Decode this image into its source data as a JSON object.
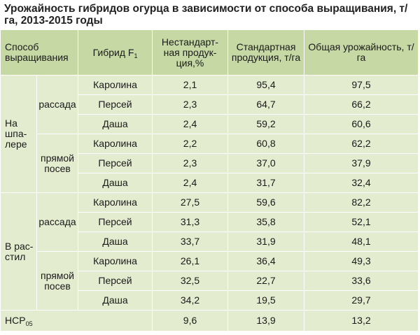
{
  "title": "Урожайность гибридов огурца в зависимости от способа выращивания, т/га, 2013-2015 годы",
  "headers": {
    "method": "Способ выращивания",
    "hybrid_main": "Гибрид F",
    "hybrid_sub": "1",
    "nonstandard": "Нестандарт-ная продук-ция,%",
    "standard": "Стандартная продукция, т/га",
    "total": "Общая урожайность, т/га"
  },
  "groups": [
    {
      "label": "На шпа-лере",
      "subgroups": [
        {
          "label": "рассада",
          "rows": [
            {
              "hybrid": "Каролина",
              "nonstandard": "2,1",
              "standard": "95,4",
              "total": "97,5"
            },
            {
              "hybrid": "Персей",
              "nonstandard": "2,3",
              "standard": "64,7",
              "total": "66,2"
            },
            {
              "hybrid": "Даша",
              "nonstandard": "2,4",
              "standard": "59,2",
              "total": "60,6"
            }
          ]
        },
        {
          "label": "прямой посев",
          "rows": [
            {
              "hybrid": "Каролина",
              "nonstandard": "2,2",
              "standard": "60,8",
              "total": "62,2"
            },
            {
              "hybrid": "Персей",
              "nonstandard": "2,3",
              "standard": "37,0",
              "total": "37,9"
            },
            {
              "hybrid": "Даша",
              "nonstandard": "2,4",
              "standard": "31,7",
              "total": "32,4"
            }
          ]
        }
      ]
    },
    {
      "label": "В рас-стил",
      "subgroups": [
        {
          "label": "рассада",
          "rows": [
            {
              "hybrid": "Каролина",
              "nonstandard": "27,5",
              "standard": "59,6",
              "total": "82,2"
            },
            {
              "hybrid": "Персей",
              "nonstandard": "31,3",
              "standard": "35,8",
              "total": "52,1"
            },
            {
              "hybrid": "Даша",
              "nonstandard": "33,7",
              "standard": "31,9",
              "total": "48,1"
            }
          ]
        },
        {
          "label": "прямой посев",
          "rows": [
            {
              "hybrid": "Каролина",
              "nonstandard": "26,1",
              "standard": "36,4",
              "total": "49,3"
            },
            {
              "hybrid": "Персей",
              "nonstandard": "32,5",
              "standard": "22,7",
              "total": "33,6"
            },
            {
              "hybrid": "Даша",
              "nonstandard": "34,2",
              "standard": "19,5",
              "total": "29,7"
            }
          ]
        }
      ]
    }
  ],
  "hcp": {
    "label_main": "НСР",
    "label_sub": "05",
    "nonstandard": "9,6",
    "standard": "13,9",
    "total": "13,2"
  },
  "colors": {
    "header_bg": "#c6d8a4",
    "body_bg": "#e4ecd0",
    "border": "#ffffff"
  }
}
